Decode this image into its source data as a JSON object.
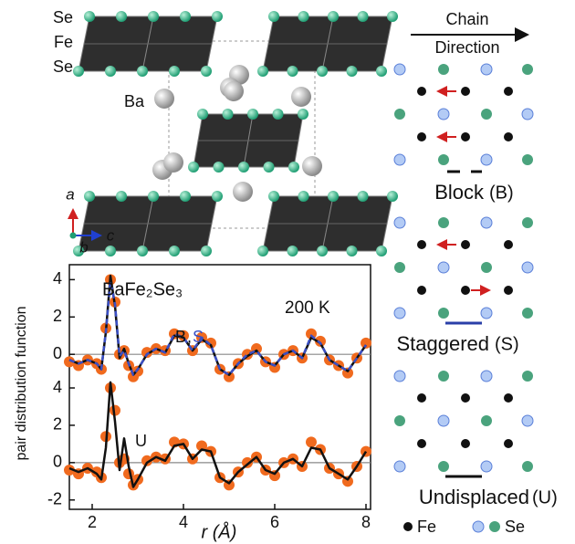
{
  "structure": {
    "labels": {
      "se_top": "Se",
      "fe": "Fe",
      "se_bottom": "Se",
      "ba": "Ba"
    },
    "axes": {
      "a": "a",
      "b": "b",
      "c": "c"
    }
  },
  "chart_data": {
    "type": "line",
    "y_label": "pair distribution function",
    "x_label": "r (Å)",
    "annotations": {
      "compound": "BaFe₂Se₃",
      "temperature": "200 K",
      "comma": ","
    },
    "x": [
      1.5,
      1.7,
      1.9,
      2.1,
      2.2,
      2.3,
      2.4,
      2.5,
      2.6,
      2.7,
      2.8,
      2.9,
      3.0,
      3.2,
      3.4,
      3.6,
      3.8,
      4.0,
      4.2,
      4.4,
      4.6,
      4.8,
      5.0,
      5.2,
      5.4,
      5.6,
      5.8,
      6.0,
      6.2,
      6.4,
      6.6,
      6.8,
      7.0,
      7.2,
      7.4,
      7.6,
      7.8,
      8.0
    ],
    "series": [
      {
        "color": "#f06a1e",
        "markers": true,
        "values": [
          5.4,
          5.2,
          5.5,
          5.3,
          5.0,
          7.2,
          9.8,
          8.6,
          5.8,
          6.0,
          5.2,
          4.6,
          4.9,
          5.9,
          6.1,
          6.0,
          6.9,
          6.8,
          6.0,
          6.7,
          6.4,
          5.0,
          4.6,
          5.3,
          5.8,
          6.1,
          5.4,
          5.1,
          5.8,
          6.0,
          5.6,
          6.9,
          6.5,
          5.5,
          5.2,
          4.8,
          5.6,
          6.4
        ]
      },
      {
        "name": "B",
        "color": "#111111",
        "values": [
          5.5,
          5.3,
          5.5,
          5.3,
          5.0,
          7.0,
          10.0,
          8.4,
          5.6,
          6.1,
          5.3,
          4.7,
          5.0,
          5.8,
          6.1,
          5.9,
          6.8,
          6.7,
          6.0,
          6.6,
          6.3,
          5.0,
          4.7,
          5.3,
          5.7,
          6.0,
          5.4,
          5.2,
          5.8,
          6.0,
          5.6,
          6.7,
          6.4,
          5.5,
          5.2,
          4.9,
          5.6,
          6.3
        ]
      },
      {
        "name": "S",
        "color": "#3a4fc4",
        "dashed": true,
        "values": [
          5.5,
          5.3,
          5.5,
          5.3,
          5.0,
          7.0,
          9.7,
          8.5,
          5.7,
          6.0,
          5.3,
          4.7,
          5.0,
          5.8,
          6.1,
          5.9,
          6.9,
          6.7,
          6.0,
          6.7,
          6.3,
          5.0,
          4.7,
          5.3,
          5.8,
          6.0,
          5.4,
          5.2,
          5.8,
          6.0,
          5.6,
          6.8,
          6.4,
          5.5,
          5.2,
          4.9,
          5.6,
          6.3
        ]
      },
      {
        "color": "#f06a1e",
        "markers": true,
        "values": [
          -0.4,
          -0.6,
          -0.3,
          -0.5,
          -0.8,
          1.4,
          4.0,
          2.8,
          0.0,
          0.2,
          -0.6,
          -1.2,
          -0.9,
          0.1,
          0.3,
          0.2,
          1.1,
          1.0,
          0.2,
          0.9,
          0.6,
          -0.8,
          -1.2,
          -0.5,
          0.0,
          0.3,
          -0.4,
          -0.7,
          0.0,
          0.2,
          -0.2,
          1.1,
          0.7,
          -0.3,
          -0.6,
          -1.0,
          -0.2,
          0.6
        ]
      },
      {
        "name": "U",
        "color": "#111111",
        "values": [
          -0.3,
          -0.5,
          -0.3,
          -0.6,
          -0.9,
          0.8,
          4.3,
          2.2,
          -0.4,
          1.3,
          -0.2,
          -1.3,
          -0.9,
          0.0,
          0.3,
          0.1,
          0.9,
          1.0,
          0.2,
          0.7,
          0.6,
          -0.8,
          -1.1,
          -0.5,
          -0.1,
          0.3,
          -0.4,
          -0.6,
          0.0,
          0.2,
          -0.2,
          0.8,
          0.7,
          -0.3,
          -0.6,
          -0.9,
          -0.2,
          0.6
        ]
      }
    ],
    "xlim": [
      1.5,
      8.1
    ],
    "xticks": [
      2,
      4,
      6,
      8
    ],
    "ylim": [
      -2.5,
      10.6
    ],
    "yticks": [
      -2,
      0,
      2,
      4,
      {
        "value": 5.8,
        "label": "0"
      },
      {
        "value": 7.8,
        "label": "2"
      },
      {
        "value": 9.8,
        "label": "4"
      }
    ],
    "hlines": [
      0,
      5.8
    ],
    "hline_color": "#888888"
  },
  "schematic": {
    "header": {
      "line1": "Chain",
      "line2": "Direction"
    },
    "panels": [
      {
        "name": "Block",
        "code": "(B)"
      },
      {
        "name": "Staggered",
        "code": "(S)"
      },
      {
        "name": "Undisplaced",
        "code": "(U)"
      }
    ],
    "legend": {
      "fe": "Fe",
      "se": "Se"
    }
  }
}
